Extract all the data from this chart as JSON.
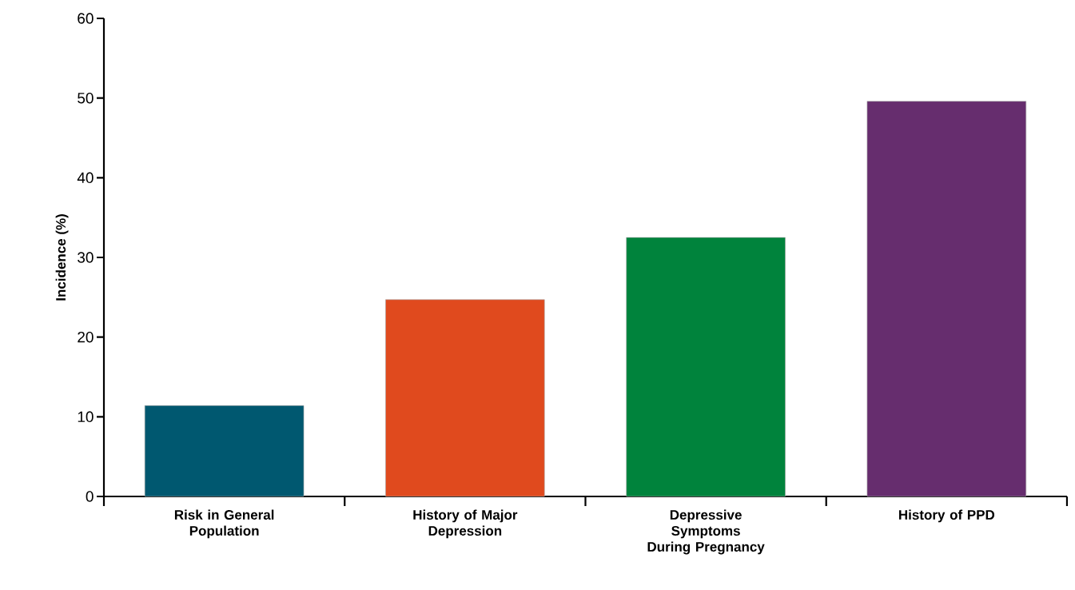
{
  "chart_data": {
    "type": "bar",
    "ylabel": "Incidence (%)",
    "categories": [
      "Risk in General Population",
      "History of Major Depression",
      "Depressive Symptoms During Pregnancy",
      "History of PPD"
    ],
    "values": [
      11.4,
      24.7,
      32.5,
      49.6
    ],
    "colors": [
      "#005870",
      "#e04a1e",
      "#00833c",
      "#662d6e"
    ],
    "ylim": [
      0,
      60
    ],
    "yticks": [
      0,
      10,
      20,
      30,
      40,
      50,
      60
    ],
    "grid": false
  }
}
